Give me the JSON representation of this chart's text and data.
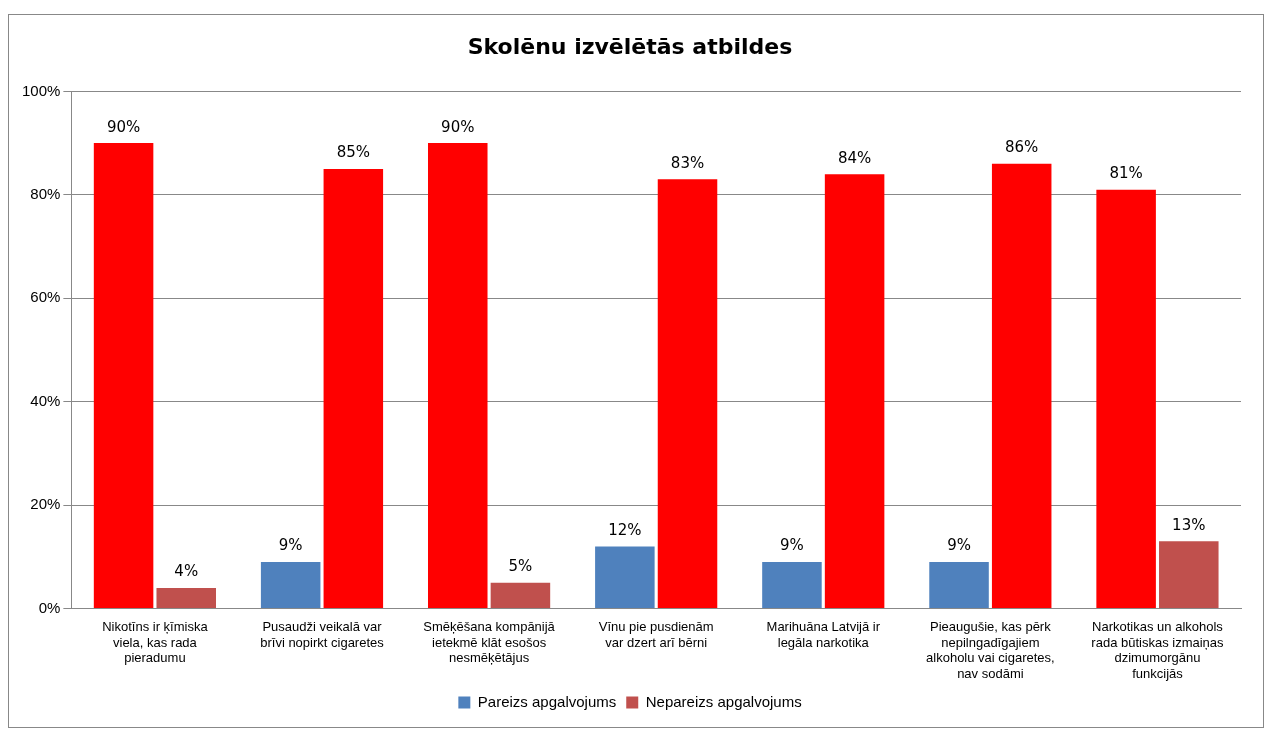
{
  "chart_data": {
    "type": "bar",
    "title": "Skolēnu izvēlētās atbildes",
    "categories": [
      "Nikotīns ir ķīmiska viela, kas rada pieradumu",
      "Pusaudži veikalā var brīvi nopirkt cigaretes",
      "Smēķēšana kompānijā ietekmē klāt esošos nesmēķētājus",
      "Vīnu pie pusdienām var dzert arī bērni",
      "Marihuāna Latvijā ir legāla narkotika",
      "Pieaugušie, kas pērk nepilngadīgajiem alkoholu vai cigaretes, nav sodāmi",
      "Narkotikas un alkohols rada būtiskas izmaiņas dzimumorgānu funkcijās"
    ],
    "series": [
      {
        "name": "Pareizs apgalvojums",
        "color": "#4f81bd",
        "colors": [
          "#ff0000",
          "#4f81bd",
          "#ff0000",
          "#4f81bd",
          "#4f81bd",
          "#4f81bd",
          "#ff0000"
        ],
        "values": [
          90,
          9,
          90,
          12,
          9,
          9,
          81
        ],
        "value_labels": [
          "90%",
          "9%",
          "90%",
          "12%",
          "9%",
          "9%",
          "81%"
        ]
      },
      {
        "name": "Nepareizs apgalvojums",
        "color": "#c0504d",
        "colors": [
          "#c0504d",
          "#ff0000",
          "#c0504d",
          "#ff0000",
          "#ff0000",
          "#ff0000",
          "#c0504d"
        ],
        "values": [
          4,
          85,
          5,
          83,
          84,
          86,
          13
        ],
        "value_labels": [
          "4%",
          "85%",
          "5%",
          "83%",
          "84%",
          "86%",
          "13%"
        ]
      }
    ],
    "ylim": [
      0,
      100
    ],
    "yticks": [
      {
        "value": 0,
        "label": "0%"
      },
      {
        "value": 20,
        "label": "20%"
      },
      {
        "value": 40,
        "label": "40%"
      },
      {
        "value": 60,
        "label": "60%"
      },
      {
        "value": 80,
        "label": "80%"
      },
      {
        "value": 100,
        "label": "100%"
      }
    ],
    "grid": "y",
    "legend": "bottom"
  }
}
